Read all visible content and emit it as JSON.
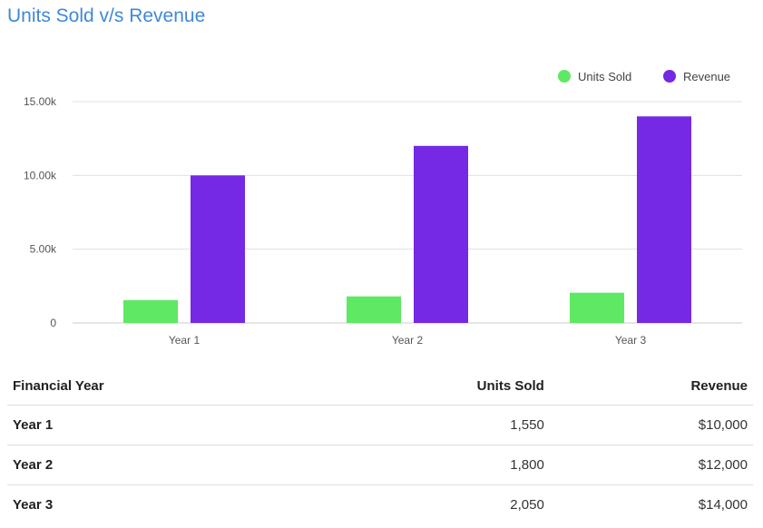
{
  "title": "Units Sold v/s Revenue",
  "colors": {
    "units": "#5ee863",
    "revenue": "#7529e4",
    "title": "#3f88d8",
    "grid": "#e0e0e0"
  },
  "legend": [
    {
      "label": "Units Sold",
      "color": "#5ee863"
    },
    {
      "label": "Revenue",
      "color": "#7529e4"
    }
  ],
  "chart_data": {
    "type": "bar",
    "title": "Units Sold v/s Revenue",
    "categories": [
      "Year 1",
      "Year 2",
      "Year 3"
    ],
    "series": [
      {
        "name": "Units Sold",
        "values": [
          1550,
          1800,
          2050
        ]
      },
      {
        "name": "Revenue",
        "values": [
          10000,
          12000,
          14000
        ]
      }
    ],
    "yticks": [
      {
        "value": 0,
        "label": "0"
      },
      {
        "value": 5000,
        "label": "5.00k"
      },
      {
        "value": 10000,
        "label": "10.00k"
      },
      {
        "value": 15000,
        "label": "15.00k"
      }
    ],
    "ylim": [
      0,
      15000
    ],
    "grid": true,
    "legend_position": "top-right"
  },
  "table": {
    "headers": [
      "Financial Year",
      "Units Sold",
      "Revenue"
    ],
    "rows": [
      [
        "Year 1",
        "1,550",
        "$10,000"
      ],
      [
        "Year 2",
        "1,800",
        "$12,000"
      ],
      [
        "Year 3",
        "2,050",
        "$14,000"
      ]
    ]
  }
}
